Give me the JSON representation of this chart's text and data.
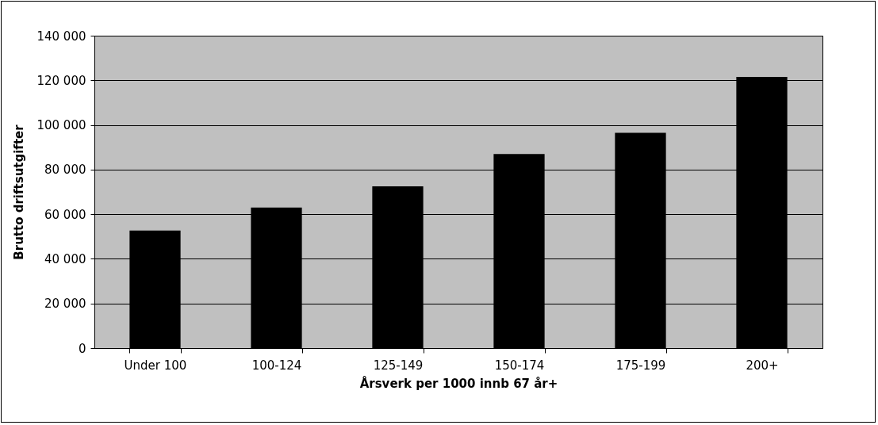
{
  "chart_data": {
    "type": "bar",
    "xlabel": "Årsverk per 1000 innb 67 år+",
    "ylabel": "Brutto driftsutgifter",
    "categories": [
      "Under 100",
      "100-124",
      "125-149",
      "150-174",
      "175-199",
      "200+"
    ],
    "values": [
      52700,
      63000,
      72500,
      87000,
      96500,
      121500
    ],
    "color": "#000000",
    "ylim": [
      0,
      140000
    ],
    "yticks": [
      {
        "value": 0,
        "label": "0"
      },
      {
        "value": 20000,
        "label": "20 000"
      },
      {
        "value": 40000,
        "label": "40 000"
      },
      {
        "value": 60000,
        "label": "60 000"
      },
      {
        "value": 80000,
        "label": "80 000"
      },
      {
        "value": 100000,
        "label": "100 000"
      },
      {
        "value": 120000,
        "label": "120 000"
      },
      {
        "value": 140000,
        "label": "140 000"
      }
    ],
    "grid": "y"
  }
}
